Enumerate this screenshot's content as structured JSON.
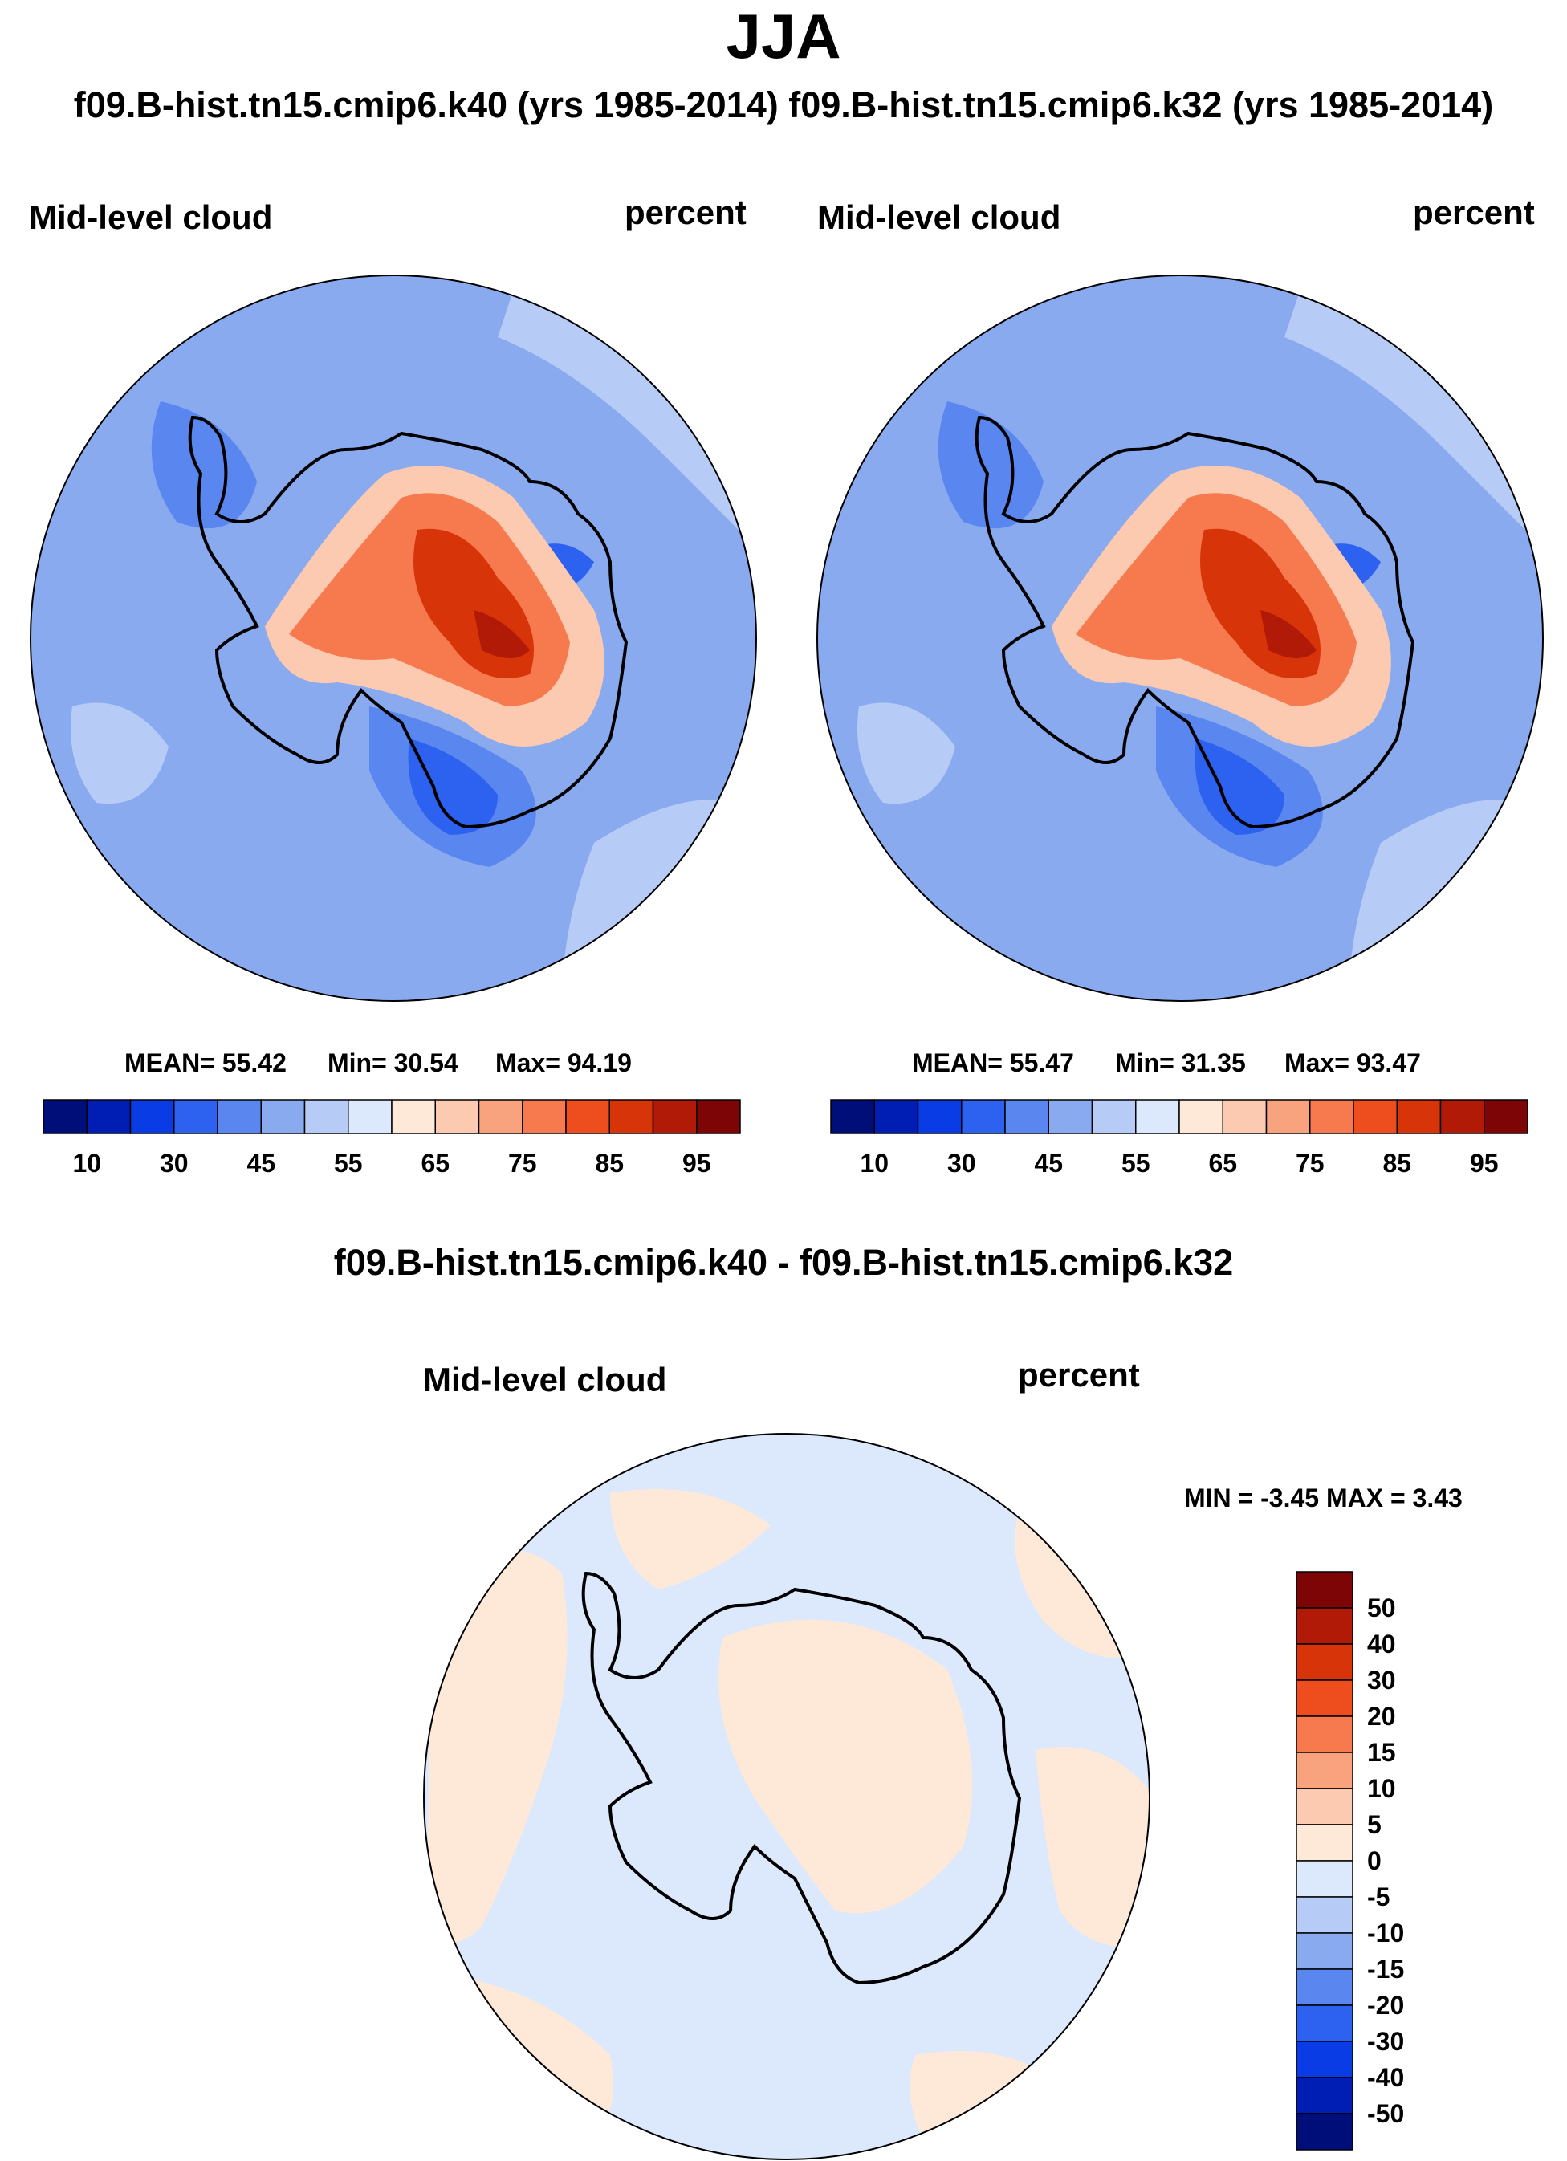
{
  "figure": {
    "season": "JJA",
    "run_header": "f09.B-hist.tn15.cmip6.k40 (yrs 1985-2014) f09.B-hist.tn15.cmip6.k32 (yrs 1985-2014)",
    "diff_header": "f09.B-hist.tn15.cmip6.k40 - f09.B-hist.tn15.cmip6.k32"
  },
  "chart_data": [
    {
      "type": "heatmap",
      "projection": "south-polar-stereographic",
      "case": "f09.B-hist.tn15.cmip6.k40",
      "years": "1985-2014",
      "title": "Mid-level cloud",
      "units": "percent",
      "stats_text": {
        "mean": "MEAN=  55.42",
        "min": "Min=  30.54",
        "max": "Max=  94.19"
      },
      "mean": 55.42,
      "min": 30.54,
      "max": 94.19,
      "colorbar": {
        "orientation": "horizontal",
        "tick_labels": [
          "10",
          "30",
          "45",
          "55",
          "65",
          "75",
          "85",
          "95"
        ],
        "colors": [
          "#000e7a",
          "#001eb4",
          "#0a3ce6",
          "#2d62f0",
          "#5a86ef",
          "#8aaaf0",
          "#b6ccf6",
          "#dce8fb",
          "#fee9d9",
          "#fccab0",
          "#f9a27e",
          "#f67a4e",
          "#ee4e1e",
          "#d8340a",
          "#b11a06",
          "#7e0505"
        ]
      }
    },
    {
      "type": "heatmap",
      "projection": "south-polar-stereographic",
      "case": "f09.B-hist.tn15.cmip6.k32",
      "years": "1985-2014",
      "title": "Mid-level cloud",
      "units": "percent",
      "stats_text": {
        "mean": "MEAN=  55.47",
        "min": "Min=  31.35",
        "max": "Max=  93.47"
      },
      "mean": 55.47,
      "min": 31.35,
      "max": 93.47,
      "colorbar": {
        "orientation": "horizontal",
        "tick_labels": [
          "10",
          "30",
          "45",
          "55",
          "65",
          "75",
          "85",
          "95"
        ],
        "colors": [
          "#000e7a",
          "#001eb4",
          "#0a3ce6",
          "#2d62f0",
          "#5a86ef",
          "#8aaaf0",
          "#b6ccf6",
          "#dce8fb",
          "#fee9d9",
          "#fccab0",
          "#f9a27e",
          "#f67a4e",
          "#ee4e1e",
          "#d8340a",
          "#b11a06",
          "#7e0505"
        ]
      }
    },
    {
      "type": "heatmap",
      "projection": "south-polar-stereographic",
      "case": "f09.B-hist.tn15.cmip6.k40 - f09.B-hist.tn15.cmip6.k32",
      "title": "Mid-level cloud",
      "units": "percent",
      "stats_text": "MIN =  -3.45 MAX =   3.43",
      "min": -3.45,
      "max": 3.43,
      "colorbar": {
        "orientation": "vertical",
        "tick_labels": [
          "50",
          "40",
          "30",
          "20",
          "15",
          "10",
          "5",
          "0",
          "-5",
          "-10",
          "-15",
          "-20",
          "-30",
          "-40",
          "-50"
        ],
        "colors": [
          "#7e0505",
          "#b11a06",
          "#d8340a",
          "#ee4e1e",
          "#f67a4e",
          "#f9a27e",
          "#fccab0",
          "#fee9d9",
          "#dce8fb",
          "#b6ccf6",
          "#8aaaf0",
          "#5a86ef",
          "#2d62f0",
          "#0a3ce6",
          "#001eb4",
          "#000e7a"
        ]
      }
    }
  ]
}
